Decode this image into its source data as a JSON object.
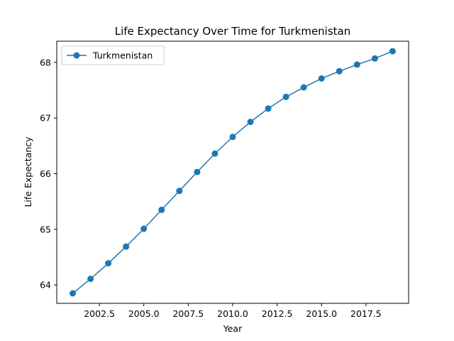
{
  "chart_data": {
    "type": "line",
    "title": "Life Expectancy Over Time for Turkmenistan",
    "xlabel": "Year",
    "ylabel": "Life Expectancy",
    "xlim": [
      2000.1,
      2019.9
    ],
    "ylim": [
      63.67,
      68.38
    ],
    "xticks": [
      2002.5,
      2005.0,
      2007.5,
      2010.0,
      2012.5,
      2015.0,
      2017.5
    ],
    "xtick_labels": [
      "2002.5",
      "2005.0",
      "2007.5",
      "2010.0",
      "2012.5",
      "2015.0",
      "2017.5"
    ],
    "yticks": [
      64,
      65,
      66,
      67,
      68
    ],
    "ytick_labels": [
      "64",
      "65",
      "66",
      "67",
      "68"
    ],
    "grid": false,
    "legend_position": "upper-left",
    "color": "#1f77b4",
    "series": [
      {
        "name": "Turkmenistan",
        "x": [
          2001,
          2002,
          2003,
          2004,
          2005,
          2006,
          2007,
          2008,
          2009,
          2010,
          2011,
          2012,
          2013,
          2014,
          2015,
          2016,
          2017,
          2018,
          2019
        ],
        "y": [
          63.85,
          64.11,
          64.39,
          64.69,
          65.01,
          65.35,
          65.69,
          66.03,
          66.36,
          66.66,
          66.93,
          67.17,
          67.38,
          67.55,
          67.71,
          67.84,
          67.96,
          68.07,
          68.2
        ]
      }
    ]
  }
}
